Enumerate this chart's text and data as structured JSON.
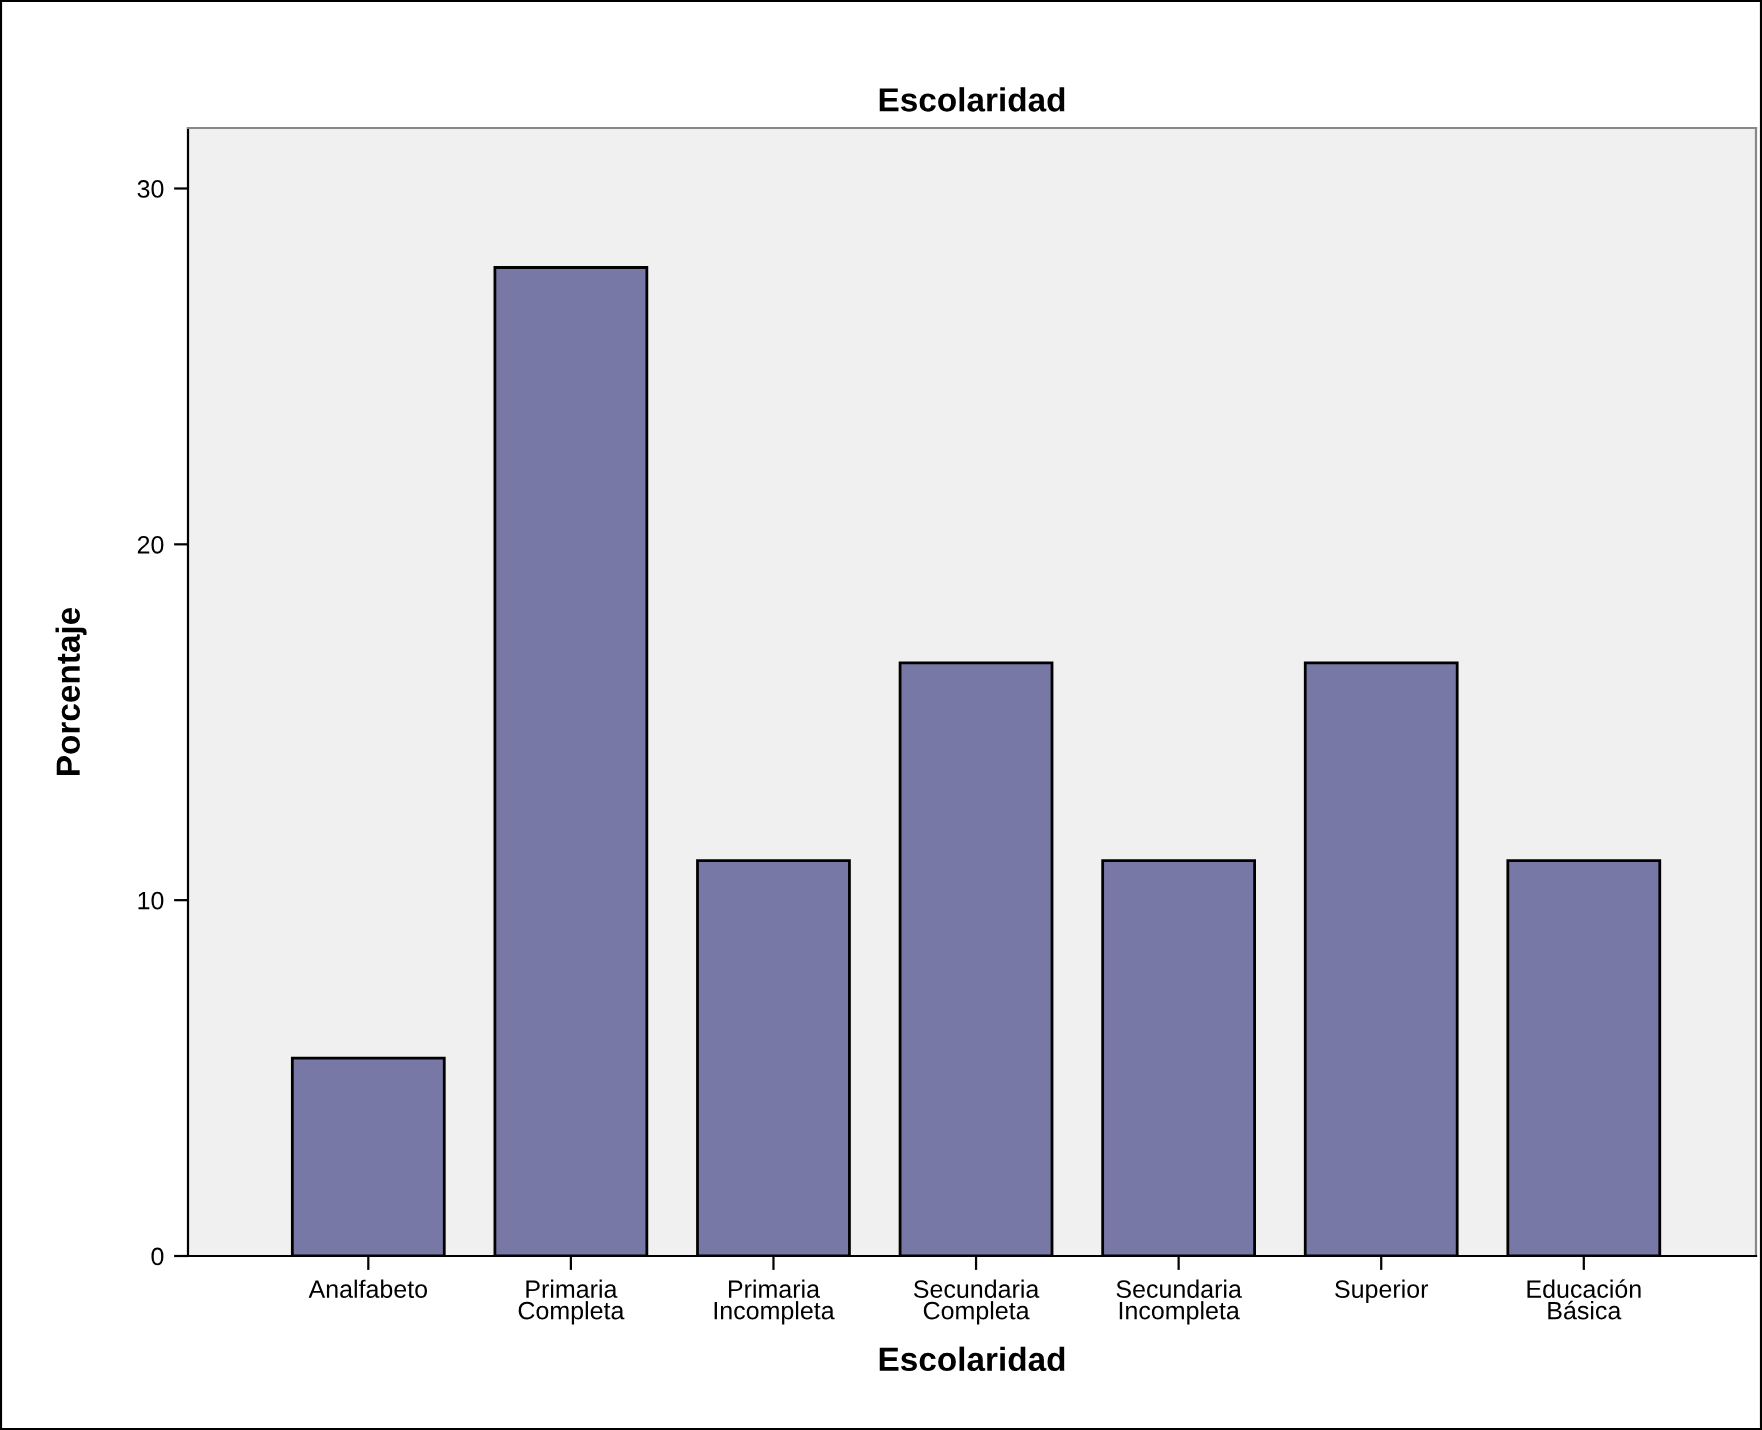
{
  "chart_data": {
    "type": "bar",
    "title": "Escolaridad",
    "xlabel": "Escolaridad",
    "ylabel": "Porcentaje",
    "categories": [
      "Analfabeto",
      "Primaria\nCompleta",
      "Primaria\nIncompleta",
      "Secundaria\nCompleta",
      "Secundaria\nIncompleta",
      "Superior",
      "Educación\nBásica"
    ],
    "values": [
      5.56,
      27.78,
      11.11,
      16.67,
      11.11,
      16.67,
      11.11
    ],
    "color": "#7878a6",
    "ylim": [
      0,
      31.7
    ],
    "yticks": [
      0,
      10,
      20,
      30
    ],
    "grid": false
  }
}
